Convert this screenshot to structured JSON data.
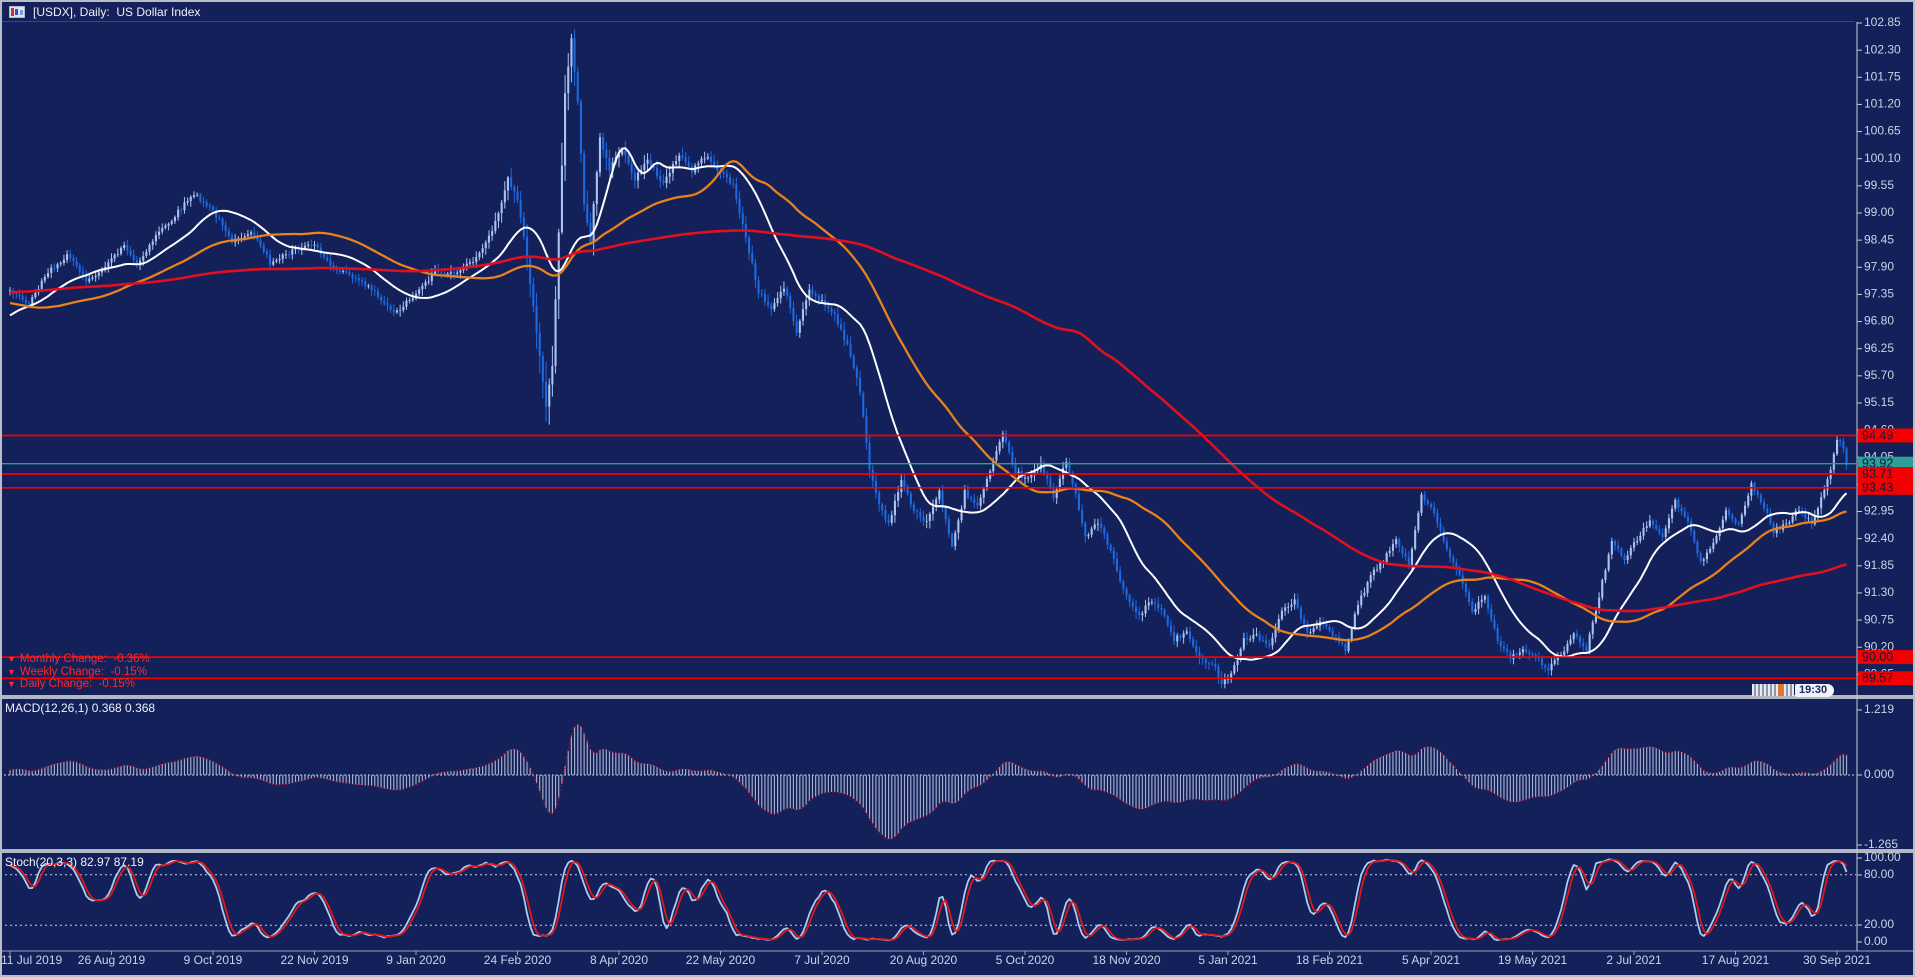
{
  "header": {
    "title": "[USDX], Daily:  US Dollar Index"
  },
  "price_pane": {
    "change_rows": [
      {
        "icon": "▼",
        "text": "Monthly Change:  -0.36%"
      },
      {
        "icon": "▼",
        "text": "Weekly Change:  -0.15%"
      },
      {
        "icon": "▼",
        "text": "Daily Change:  -0.15%"
      }
    ],
    "countdown": "19:30"
  },
  "macd_pane": {
    "label": "MACD(12,26,1) 0.368 0.368"
  },
  "stoch_pane": {
    "label": "Stoch(20,3,3) 82.97 87.19"
  },
  "chart_data": {
    "type": "candlestick",
    "title": "[USDX], Daily: US Dollar Index",
    "symbol": "USDX",
    "timeframe": "Daily",
    "y_ticks": [
      "102.85",
      "102.30",
      "101.75",
      "101.20",
      "100.65",
      "100.10",
      "99.55",
      "99.00",
      "98.45",
      "97.90",
      "97.35",
      "96.80",
      "96.25",
      "95.70",
      "95.15",
      "94.60",
      "94.05",
      "93.50",
      "92.95",
      "92.40",
      "91.85",
      "91.30",
      "90.75",
      "90.20",
      "89.65"
    ],
    "x_labels": [
      "11 Jul 2019",
      "26 Aug 2019",
      "9 Oct 2019",
      "22 Nov 2019",
      "9 Jan 2020",
      "24 Feb 2020",
      "8 Apr 2020",
      "22 May 2020",
      "7 Jul 2020",
      "20 Aug 2020",
      "5 Oct 2020",
      "18 Nov 2020",
      "5 Jan 2021",
      "18 Feb 2021",
      "5 Apr 2021",
      "19 May 2021",
      "2 Jul 2021",
      "17 Aug 2021",
      "30 Sep 2021"
    ],
    "candles_per_interval": 32,
    "num_candles": 580,
    "price_keypoints": [
      [
        0,
        97.4
      ],
      [
        6,
        97.15
      ],
      [
        12,
        97.8
      ],
      [
        18,
        98.15
      ],
      [
        24,
        97.65
      ],
      [
        30,
        97.9
      ],
      [
        36,
        98.35
      ],
      [
        40,
        97.95
      ],
      [
        46,
        98.55
      ],
      [
        52,
        98.95
      ],
      [
        58,
        99.4
      ],
      [
        64,
        99.05
      ],
      [
        70,
        98.4
      ],
      [
        76,
        98.65
      ],
      [
        82,
        98.0
      ],
      [
        90,
        98.25
      ],
      [
        96,
        98.35
      ],
      [
        102,
        97.85
      ],
      [
        108,
        97.7
      ],
      [
        114,
        97.45
      ],
      [
        121,
        96.95
      ],
      [
        128,
        97.35
      ],
      [
        134,
        97.8
      ],
      [
        140,
        97.75
      ],
      [
        146,
        98.05
      ],
      [
        152,
        98.6
      ],
      [
        157,
        99.7
      ],
      [
        160,
        99.25
      ],
      [
        163,
        98.1
      ],
      [
        166,
        96.6
      ],
      [
        169,
        95.1
      ],
      [
        171,
        95.9
      ],
      [
        173,
        98.6
      ],
      [
        175,
        101.4
      ],
      [
        177,
        102.5
      ],
      [
        179,
        101.3
      ],
      [
        181,
        99.2
      ],
      [
        183,
        98.45
      ],
      [
        186,
        100.5
      ],
      [
        189,
        99.9
      ],
      [
        193,
        100.3
      ],
      [
        197,
        99.7
      ],
      [
        201,
        100.05
      ],
      [
        206,
        99.6
      ],
      [
        211,
        100.2
      ],
      [
        215,
        99.85
      ],
      [
        219,
        100.15
      ],
      [
        224,
        99.85
      ],
      [
        228,
        99.55
      ],
      [
        232,
        98.5
      ],
      [
        236,
        97.4
      ],
      [
        240,
        97.05
      ],
      [
        244,
        97.5
      ],
      [
        248,
        96.6
      ],
      [
        252,
        97.45
      ],
      [
        256,
        97.2
      ],
      [
        260,
        96.95
      ],
      [
        264,
        96.3
      ],
      [
        268,
        95.4
      ],
      [
        271,
        93.8
      ],
      [
        274,
        93.1
      ],
      [
        277,
        92.7
      ],
      [
        281,
        93.6
      ],
      [
        285,
        92.95
      ],
      [
        289,
        92.75
      ],
      [
        293,
        93.35
      ],
      [
        297,
        92.2
      ],
      [
        301,
        93.35
      ],
      [
        305,
        93.05
      ],
      [
        309,
        93.75
      ],
      [
        313,
        94.5
      ],
      [
        317,
        93.75
      ],
      [
        321,
        93.6
      ],
      [
        325,
        93.9
      ],
      [
        329,
        93.25
      ],
      [
        333,
        94.0
      ],
      [
        336,
        93.3
      ],
      [
        339,
        92.4
      ],
      [
        343,
        92.75
      ],
      [
        347,
        92.15
      ],
      [
        351,
        91.35
      ],
      [
        356,
        90.8
      ],
      [
        359,
        91.15
      ],
      [
        363,
        90.95
      ],
      [
        367,
        90.35
      ],
      [
        371,
        90.5
      ],
      [
        375,
        89.95
      ],
      [
        379,
        89.9
      ],
      [
        382,
        89.5
      ],
      [
        385,
        89.65
      ],
      [
        389,
        90.35
      ],
      [
        393,
        90.45
      ],
      [
        397,
        90.2
      ],
      [
        401,
        90.95
      ],
      [
        405,
        91.15
      ],
      [
        409,
        90.45
      ],
      [
        413,
        90.7
      ],
      [
        417,
        90.45
      ],
      [
        421,
        90.15
      ],
      [
        425,
        91.05
      ],
      [
        429,
        91.65
      ],
      [
        433,
        91.95
      ],
      [
        437,
        92.4
      ],
      [
        441,
        91.85
      ],
      [
        445,
        93.3
      ],
      [
        449,
        92.9
      ],
      [
        453,
        92.15
      ],
      [
        457,
        91.65
      ],
      [
        461,
        90.95
      ],
      [
        465,
        91.25
      ],
      [
        469,
        90.35
      ],
      [
        473,
        90.0
      ],
      [
        477,
        90.15
      ],
      [
        481,
        90.0
      ],
      [
        485,
        89.75
      ],
      [
        489,
        90.05
      ],
      [
        493,
        90.45
      ],
      [
        497,
        90.15
      ],
      [
        501,
        91.25
      ],
      [
        505,
        92.35
      ],
      [
        509,
        91.95
      ],
      [
        513,
        92.4
      ],
      [
        517,
        92.75
      ],
      [
        521,
        92.45
      ],
      [
        525,
        93.15
      ],
      [
        529,
        92.75
      ],
      [
        533,
        91.9
      ],
      [
        537,
        92.35
      ],
      [
        541,
        92.95
      ],
      [
        545,
        92.65
      ],
      [
        549,
        93.5
      ],
      [
        553,
        93.05
      ],
      [
        556,
        92.55
      ],
      [
        560,
        92.7
      ],
      [
        564,
        93.0
      ],
      [
        568,
        92.7
      ],
      [
        571,
        93.25
      ],
      [
        574,
        93.8
      ],
      [
        576,
        94.45
      ],
      [
        578,
        94.2
      ],
      [
        579,
        93.92
      ]
    ],
    "prehistory_keypoints": [
      [
        -200,
        96.1
      ],
      [
        -170,
        96.5
      ],
      [
        -140,
        97.2
      ],
      [
        -110,
        97.4
      ],
      [
        -80,
        98.0
      ],
      [
        -55,
        98.1
      ],
      [
        -35,
        97.2
      ],
      [
        -18,
        96.6
      ],
      [
        -8,
        96.9
      ]
    ],
    "volatility_keypoints": [
      [
        0,
        0.16
      ],
      [
        100,
        0.15
      ],
      [
        150,
        0.22
      ],
      [
        163,
        0.45
      ],
      [
        170,
        0.75
      ],
      [
        176,
        0.85
      ],
      [
        182,
        0.55
      ],
      [
        190,
        0.35
      ],
      [
        200,
        0.28
      ],
      [
        230,
        0.25
      ],
      [
        260,
        0.22
      ],
      [
        275,
        0.28
      ],
      [
        300,
        0.2
      ],
      [
        340,
        0.2
      ],
      [
        380,
        0.2
      ],
      [
        430,
        0.16
      ],
      [
        480,
        0.16
      ],
      [
        530,
        0.14
      ],
      [
        560,
        0.13
      ],
      [
        575,
        0.2
      ],
      [
        579,
        0.18
      ]
    ],
    "moving_averages": [
      {
        "name": "fast",
        "period": 20,
        "color": "#ffffff",
        "width": 2.0
      },
      {
        "name": "medium",
        "period": 55,
        "color": "#e8821c",
        "width": 2.3
      },
      {
        "name": "slow",
        "period": 165,
        "color": "#e01020",
        "width": 2.6
      }
    ],
    "horizontal_lines": [
      {
        "price": 94.49,
        "label": "94.49",
        "kind": "level"
      },
      {
        "price": 93.92,
        "label": "93.92",
        "kind": "current"
      },
      {
        "price": 93.71,
        "label": "93.71",
        "kind": "level"
      },
      {
        "price": 93.43,
        "label": "93.43",
        "kind": "level"
      },
      {
        "price": 90.0,
        "label": "90.00",
        "kind": "level"
      },
      {
        "price": 89.57,
        "label": "89.57",
        "kind": "level"
      }
    ],
    "macd": {
      "params": [
        12,
        26,
        1
      ],
      "current": [
        0.368,
        0.368
      ],
      "axis_labels": [
        "1.219",
        "0.000",
        "-1.265"
      ]
    },
    "stochastic": {
      "params": [
        20,
        3,
        3
      ],
      "current": [
        82.97,
        87.19
      ],
      "axis_labels": [
        "100.00",
        "80.00",
        "20.00",
        "0.00"
      ],
      "levels": [
        80,
        20
      ]
    },
    "colors": {
      "background": "#13205a",
      "candle_up": "#a9c4ef",
      "candle_down": "#1d69e0",
      "ma_fast": "#ffffff",
      "ma_medium": "#e8821c",
      "ma_slow": "#e01020",
      "hline_red": "#f40000",
      "current_price": "#2e9e96",
      "macd_hist": "#a3adc8",
      "macd_signal": "#d01020",
      "stoch_k": "#a8cdf2",
      "stoch_d": "#e01818",
      "axis_text": "#ccd3e6",
      "pane_separator": "#b2b7c4",
      "label_text_dark": "#0d1844",
      "change_text": "#ff2a2a"
    }
  }
}
